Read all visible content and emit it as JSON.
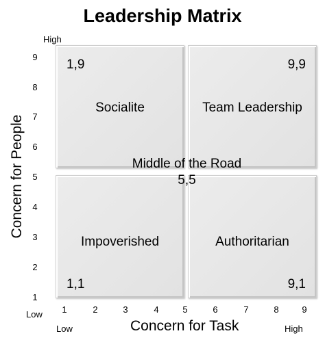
{
  "title": "Leadership Matrix",
  "y_axis": {
    "label": "Concern for People",
    "ticks": [
      "9",
      "8",
      "7",
      "6",
      "5",
      "4",
      "3",
      "2",
      "1"
    ],
    "high_label": "High",
    "low_label": "Low"
  },
  "x_axis": {
    "label": "Concern for Task",
    "ticks": [
      "1",
      "2",
      "3",
      "4",
      "5",
      "6",
      "7",
      "8",
      "9"
    ],
    "low_label": "Low",
    "high_label": "High"
  },
  "quadrants": {
    "top_left": {
      "name": "Socialite",
      "coord": "1,9"
    },
    "top_right": {
      "name": "Team Leadership",
      "coord": "9,9"
    },
    "bottom_left": {
      "name": "Impoverished",
      "coord": "1,1"
    },
    "bottom_right": {
      "name": "Authoritarian",
      "coord": "9,1"
    }
  },
  "center": {
    "name": "Middle of the Road",
    "coord": "5,5"
  }
}
